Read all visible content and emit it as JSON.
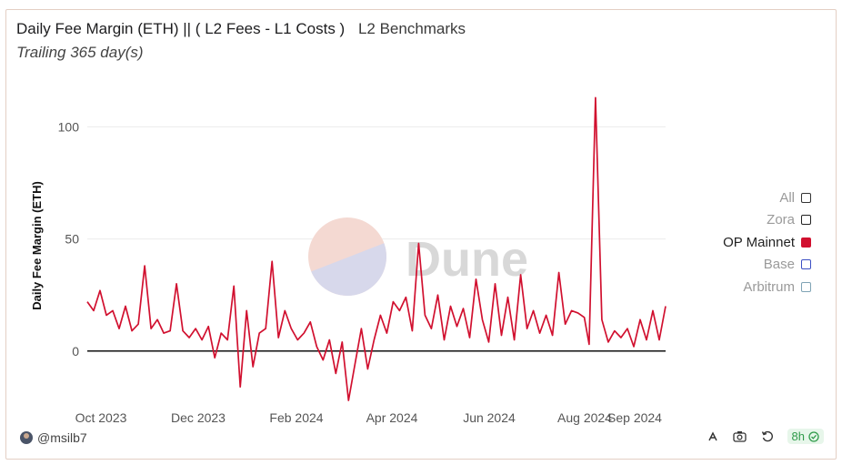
{
  "header": {
    "title": "Daily Fee Margin (ETH) || ( L2 Fees - L1 Costs )",
    "tag": "L2 Benchmarks",
    "subtitle": "Trailing 365 day(s)"
  },
  "watermark": {
    "text": "Dune"
  },
  "footer": {
    "user": "@msilb7",
    "refresh_label": "8h"
  },
  "colors": {
    "op_mainnet": "#d1102f",
    "zero_line": "#111111",
    "gridline": "#ececec",
    "watermark_text": "#d8d8d8",
    "legend_inactive": "#9a9a9a",
    "badge_green": "#2f9b4a"
  },
  "chart_data": {
    "type": "line",
    "ylabel": "Daily Fee Margin (ETH)",
    "xlabel": "",
    "ylim": [
      -22,
      118
    ],
    "yticks": [
      0,
      50,
      100
    ],
    "xticks": [
      "Oct 2023",
      "Dec 2023",
      "Feb 2024",
      "Apr 2024",
      "Jun 2024",
      "Aug 2024",
      "Sep 2024"
    ],
    "grid": true,
    "legend_position": "right",
    "legend": [
      {
        "name": "All",
        "active": false,
        "color": "#333333"
      },
      {
        "name": "Zora",
        "active": false,
        "color": "#222222"
      },
      {
        "name": "OP Mainnet",
        "active": true,
        "color": "#d1102f"
      },
      {
        "name": "Base",
        "active": false,
        "color": "#3b4fc4"
      },
      {
        "name": "Arbitrum",
        "active": false,
        "color": "#7fa3b5"
      }
    ],
    "series": [
      {
        "name": "OP Mainnet",
        "x": [
          "2023-09-25",
          "2023-09-29",
          "2023-10-03",
          "2023-10-07",
          "2023-10-11",
          "2023-10-15",
          "2023-10-19",
          "2023-10-23",
          "2023-10-27",
          "2023-10-31",
          "2023-11-04",
          "2023-11-08",
          "2023-11-12",
          "2023-11-16",
          "2023-11-20",
          "2023-11-24",
          "2023-11-28",
          "2023-12-02",
          "2023-12-06",
          "2023-12-10",
          "2023-12-14",
          "2023-12-18",
          "2023-12-22",
          "2023-12-26",
          "2023-12-30",
          "2024-01-03",
          "2024-01-07",
          "2024-01-11",
          "2024-01-15",
          "2024-01-19",
          "2024-01-23",
          "2024-01-27",
          "2024-01-31",
          "2024-02-04",
          "2024-02-08",
          "2024-02-12",
          "2024-02-16",
          "2024-02-20",
          "2024-02-24",
          "2024-02-28",
          "2024-03-03",
          "2024-03-07",
          "2024-03-11",
          "2024-03-15",
          "2024-03-19",
          "2024-03-23",
          "2024-03-27",
          "2024-03-31",
          "2024-04-04",
          "2024-04-08",
          "2024-04-12",
          "2024-04-16",
          "2024-04-20",
          "2024-04-24",
          "2024-04-28",
          "2024-05-02",
          "2024-05-06",
          "2024-05-10",
          "2024-05-14",
          "2024-05-18",
          "2024-05-22",
          "2024-05-26",
          "2024-05-30",
          "2024-06-03",
          "2024-06-07",
          "2024-06-11",
          "2024-06-15",
          "2024-06-19",
          "2024-06-23",
          "2024-06-27",
          "2024-07-01",
          "2024-07-05",
          "2024-07-09",
          "2024-07-13",
          "2024-07-17",
          "2024-07-21",
          "2024-07-25",
          "2024-07-29",
          "2024-08-02",
          "2024-08-05",
          "2024-08-09",
          "2024-08-13",
          "2024-08-17",
          "2024-08-21",
          "2024-08-25",
          "2024-08-29",
          "2024-09-02",
          "2024-09-06",
          "2024-09-10",
          "2024-09-14",
          "2024-09-18",
          "2024-09-22"
        ],
        "values": [
          22,
          18,
          27,
          16,
          18,
          10,
          20,
          9,
          12,
          38,
          10,
          14,
          8,
          9,
          30,
          9,
          6,
          10,
          5,
          11,
          -3,
          8,
          5,
          29,
          -16,
          18,
          -7,
          8,
          10,
          40,
          6,
          18,
          10,
          5,
          8,
          13,
          2,
          -4,
          5,
          -10,
          4,
          -22,
          -6,
          10,
          -8,
          5,
          16,
          8,
          22,
          18,
          24,
          9,
          48,
          16,
          10,
          25,
          5,
          20,
          11,
          19,
          6,
          32,
          14,
          4,
          30,
          7,
          24,
          5,
          34,
          10,
          18,
          8,
          16,
          7,
          35,
          12,
          18,
          17,
          15,
          3,
          113,
          14,
          4,
          9,
          6,
          10,
          2,
          14,
          5,
          18,
          5,
          20
        ]
      }
    ]
  }
}
